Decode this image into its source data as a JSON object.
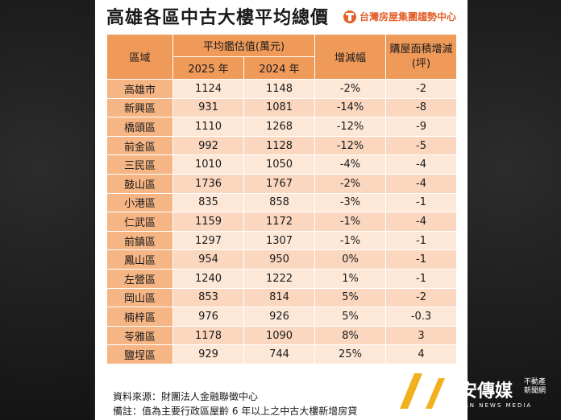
{
  "title": "高雄各區中古大樓平均總價",
  "brand": "台灣房屋集團趨勢中心",
  "table": {
    "headers": {
      "district": "區域",
      "avg_value": "平均鑑估值(萬元)",
      "year_2025": "2025 年",
      "year_2024": "2024 年",
      "change": "增減幅",
      "area_change": "購屋面積增減(坪)"
    },
    "rows": [
      [
        "高雄市",
        "1124",
        "1148",
        "-2%",
        "-2"
      ],
      [
        "新興區",
        "931",
        "1081",
        "-14%",
        "-8"
      ],
      [
        "橋頭區",
        "1110",
        "1268",
        "-12%",
        "-9"
      ],
      [
        "前金區",
        "992",
        "1128",
        "-12%",
        "-5"
      ],
      [
        "三民區",
        "1010",
        "1050",
        "-4%",
        "-4"
      ],
      [
        "鼓山區",
        "1736",
        "1767",
        "-2%",
        "-4"
      ],
      [
        "小港區",
        "835",
        "858",
        "-3%",
        "-1"
      ],
      [
        "仁武區",
        "1159",
        "1172",
        "-1%",
        "-4"
      ],
      [
        "前鎮區",
        "1297",
        "1307",
        "-1%",
        "-1"
      ],
      [
        "鳳山區",
        "954",
        "950",
        "0%",
        "-1"
      ],
      [
        "左營區",
        "1240",
        "1222",
        "1%",
        "-1"
      ],
      [
        "岡山區",
        "853",
        "814",
        "5%",
        "-2"
      ],
      [
        "楠梓區",
        "976",
        "926",
        "5%",
        "-0.3"
      ],
      [
        "苓雅區",
        "1178",
        "1090",
        "8%",
        "3"
      ],
      [
        "鹽埕區",
        "929",
        "744",
        "25%",
        "4"
      ]
    ]
  },
  "footer": {
    "source": "資料來源：財團法人金融聯徵中心",
    "note": "備註：值為主要行政區屋齡 6 年以上之中古大樓新增房貸"
  },
  "media": {
    "name": "安傳媒",
    "sub": "AN NEWS MEDIA",
    "tag1": "不動產",
    "tag2": "新聞網"
  }
}
